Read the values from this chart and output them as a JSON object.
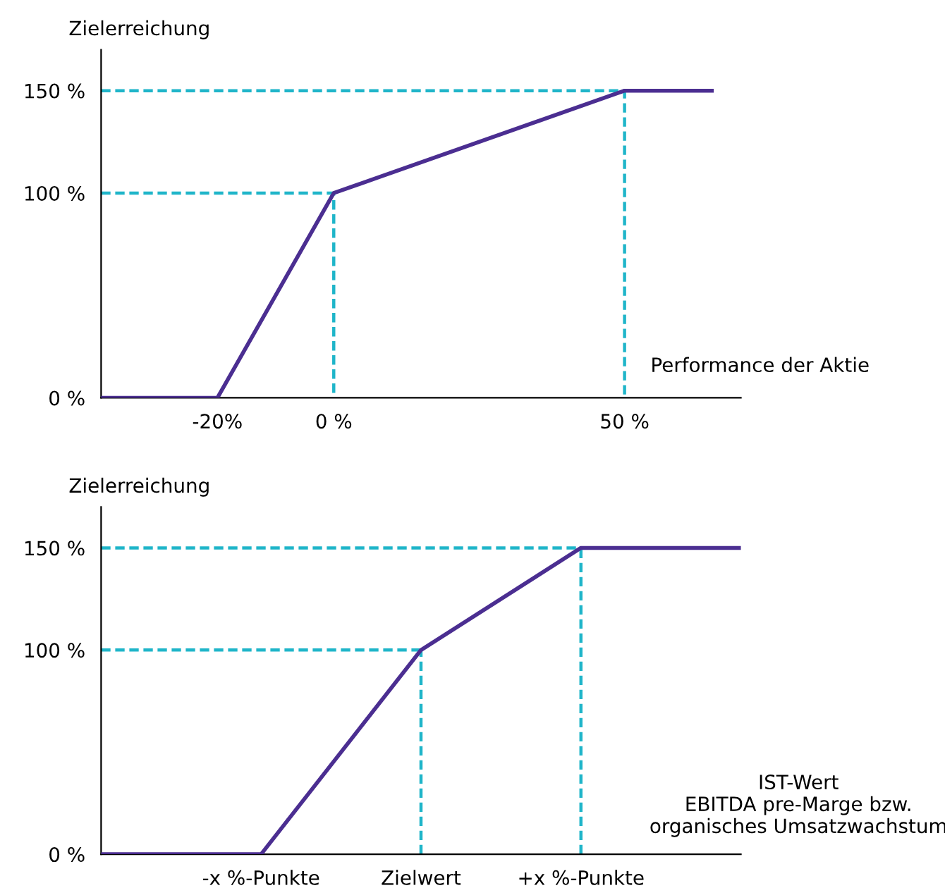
{
  "chart_data": [
    {
      "type": "line",
      "ylabel": "Zielerreichung",
      "xlabel": "Performance der Aktie",
      "series": [
        {
          "color": "#1fb5c9",
          "line_style": "dashed",
          "x": [
            -40,
            0,
            0
          ],
          "values": [
            100,
            100,
            0
          ]
        },
        {
          "color": "#1fb5c9",
          "line_style": "dashed",
          "x": [
            -40,
            50,
            50
          ],
          "values": [
            150,
            150,
            0
          ]
        },
        {
          "color": "#4b2e91",
          "line_style": "solid",
          "x": [
            -40,
            -20,
            0,
            50,
            65
          ],
          "values": [
            0,
            0,
            100,
            150,
            150
          ]
        }
      ],
      "xlim": [
        -40,
        70
      ],
      "ylim": [
        0,
        170
      ],
      "xticks": [
        {
          "value": -20,
          "label": "-20%"
        },
        {
          "value": 0,
          "label": "0 %"
        },
        {
          "value": 50,
          "label": "50 %"
        }
      ],
      "yticks": [
        {
          "value": 0,
          "label": "0 %"
        },
        {
          "value": 100,
          "label": "100 %"
        },
        {
          "value": 150,
          "label": "150 %"
        }
      ],
      "marker": "none"
    },
    {
      "type": "line",
      "ylabel": "Zielerreichung",
      "xlabel": "IST-Wert\nEBITDA pre-Marge bzw.\norganisches Umsatzwachstum",
      "categories": [
        null,
        "-x %-Punkte",
        "Zielwert",
        "+x %-Punkte",
        null
      ],
      "series": [
        {
          "color": "#1fb5c9",
          "line_style": "dashed",
          "values": [
            100,
            100,
            100,
            null,
            null
          ]
        },
        {
          "color": "#1fb5c9",
          "line_style": "dashed",
          "values": [
            150,
            150,
            150,
            150,
            null
          ]
        },
        {
          "color": "#1fb5c9",
          "line_style": "dashed",
          "x": [
            "Zielwert",
            "Zielwert"
          ],
          "values": [
            0,
            100
          ]
        },
        {
          "color": "#1fb5c9",
          "line_style": "dashed",
          "x": [
            "+x %-Punkte",
            "+x %-Punkte"
          ],
          "values": [
            0,
            150
          ]
        },
        {
          "color": "#4b2e91",
          "line_style": "solid",
          "values": [
            0,
            0,
            100,
            150,
            150
          ]
        }
      ],
      "ylim": [
        0,
        170
      ],
      "yticks": [
        {
          "value": 0,
          "label": "0 %"
        },
        {
          "value": 100,
          "label": "100 %"
        },
        {
          "value": 150,
          "label": "150 %"
        }
      ],
      "marker": "none"
    }
  ]
}
